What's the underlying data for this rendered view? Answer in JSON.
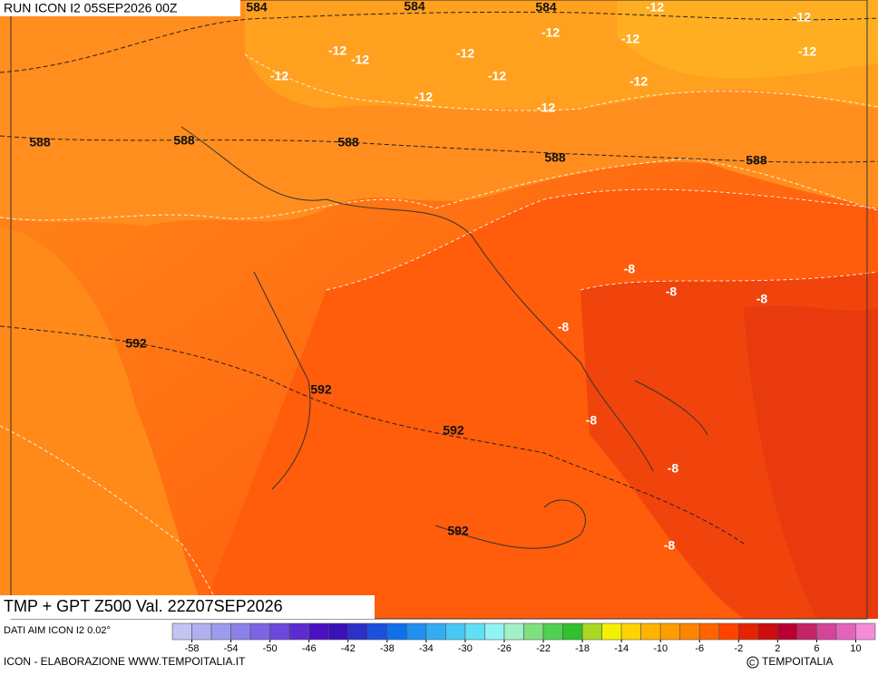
{
  "header": {
    "run": "RUN ICON I2 05SEP2026 00Z"
  },
  "map": {
    "title": "TMP + GPT Z500 Val. 22Z07SEP2026",
    "contours": {
      "geopotential": [
        584,
        584,
        584,
        588,
        588,
        588,
        588,
        588,
        592,
        592,
        592,
        592
      ],
      "temperature": [
        -12,
        -12,
        -12,
        -12,
        -12,
        -12,
        -12,
        -12,
        -12,
        -12,
        -12,
        -12,
        -12,
        -8,
        -8,
        -8,
        -8,
        -8,
        -8,
        -8
      ]
    }
  },
  "legend": {
    "source": "DATI AIM ICON I2 0.02°",
    "range": [
      -60,
      12
    ],
    "ticks": [
      -58,
      -54,
      -50,
      -46,
      -42,
      -38,
      -34,
      -30,
      -26,
      -22,
      -18,
      -14,
      -10,
      -6,
      -2,
      2,
      6,
      10
    ],
    "colors": [
      "#c4c4f4",
      "#b0b0f0",
      "#9c9cee",
      "#8c80ea",
      "#7c64e4",
      "#6c48dc",
      "#5c2cd2",
      "#4c10c4",
      "#3a10b8",
      "#2c30c8",
      "#1c50dc",
      "#1070ec",
      "#2090f0",
      "#34acf4",
      "#48c8f4",
      "#60e0f4",
      "#90f4f4",
      "#a0f0c8",
      "#80e080",
      "#50d050",
      "#30c030",
      "#a8d820",
      "#f4f000",
      "#ffd400",
      "#ffb400",
      "#ff9c00",
      "#ff8400",
      "#ff6400",
      "#ff4400",
      "#e42400",
      "#cc0c10",
      "#b80030",
      "#c42468",
      "#d44498",
      "#e464bc",
      "#f48cd8"
    ]
  },
  "footer": {
    "credit": "ICON - ELABORAZIONE WWW.TEMPOITALIA.IT",
    "brand": "TEMPOITALIA"
  }
}
